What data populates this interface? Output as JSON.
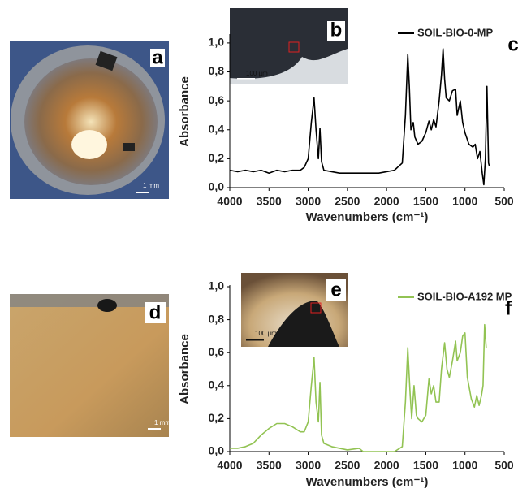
{
  "chart_data": [
    {
      "type": "line",
      "x_label": "Wavenumbers (cm⁻¹)",
      "y_label": "Absorbance",
      "xlim": [
        4000,
        500
      ],
      "xticks": [
        4000,
        3500,
        3000,
        2500,
        2000,
        1500,
        1000,
        500
      ],
      "ylim": [
        0,
        1.05
      ],
      "yticks": [
        {
          "value": 0,
          "label": "0,0"
        },
        {
          "value": 0.2,
          "label": "0,2"
        },
        {
          "value": 0.4,
          "label": "0,4"
        },
        {
          "value": 0.6,
          "label": "0,6"
        },
        {
          "value": 0.8,
          "label": "0,8"
        },
        {
          "value": 1,
          "label": "1,0"
        }
      ],
      "legend": "upper right",
      "panel_labels": [
        "a",
        "b",
        "c"
      ],
      "scale_labels": [
        "1 mm",
        "100 µm"
      ],
      "x": [
        4000,
        3900,
        3800,
        3700,
        3600,
        3500,
        3400,
        3300,
        3200,
        3100,
        3050,
        3000,
        2960,
        2925,
        2900,
        2870,
        2850,
        2830,
        2800,
        2700,
        2600,
        2500,
        2400,
        2300,
        2200,
        2100,
        2000,
        1900,
        1800,
        1760,
        1730,
        1710,
        1690,
        1660,
        1640,
        1600,
        1550,
        1500,
        1460,
        1430,
        1400,
        1370,
        1330,
        1300,
        1280,
        1260,
        1240,
        1200,
        1160,
        1120,
        1100,
        1060,
        1030,
        1000,
        950,
        900,
        870,
        840,
        810,
        780,
        760,
        740,
        720,
        700,
        690
      ],
      "series": [
        {
          "name": "SOIL-BIO-0-MP",
          "color": "#000000",
          "values": [
            0.12,
            0.11,
            0.12,
            0.11,
            0.12,
            0.1,
            0.12,
            0.11,
            0.12,
            0.12,
            0.14,
            0.2,
            0.45,
            0.62,
            0.4,
            0.2,
            0.41,
            0.18,
            0.12,
            0.11,
            0.1,
            0.1,
            0.1,
            0.1,
            0.1,
            0.1,
            0.11,
            0.12,
            0.17,
            0.5,
            0.92,
            0.7,
            0.4,
            0.45,
            0.35,
            0.3,
            0.32,
            0.38,
            0.46,
            0.4,
            0.47,
            0.42,
            0.6,
            0.78,
            0.96,
            0.75,
            0.62,
            0.6,
            0.67,
            0.68,
            0.5,
            0.6,
            0.45,
            0.38,
            0.3,
            0.28,
            0.3,
            0.2,
            0.25,
            0.1,
            0.02,
            0.2,
            0.7,
            0.17,
            0.15
          ]
        }
      ]
    },
    {
      "type": "line",
      "x_label": "Wavenumbers (cm⁻¹)",
      "y_label": "Absorbance",
      "xlim": [
        4000,
        500
      ],
      "xticks": [
        4000,
        3500,
        3000,
        2500,
        2000,
        1500,
        1000,
        500
      ],
      "ylim": [
        0,
        1.0
      ],
      "yticks": [
        {
          "value": 0,
          "label": "0,0"
        },
        {
          "value": 0.2,
          "label": "0,2"
        },
        {
          "value": 0.4,
          "label": "0,4"
        },
        {
          "value": 0.6,
          "label": "0,6"
        },
        {
          "value": 0.8,
          "label": "0,8"
        },
        {
          "value": 1,
          "label": "1,0"
        }
      ],
      "legend": "upper right",
      "panel_labels": [
        "d",
        "e",
        "f"
      ],
      "scale_labels": [
        "1 mm",
        "100 µm"
      ],
      "x": [
        4000,
        3900,
        3800,
        3700,
        3600,
        3500,
        3400,
        3300,
        3200,
        3100,
        3050,
        3000,
        2960,
        2925,
        2900,
        2870,
        2850,
        2830,
        2800,
        2700,
        2500,
        2350,
        2300,
        2100,
        1900,
        1800,
        1760,
        1730,
        1700,
        1680,
        1650,
        1620,
        1600,
        1550,
        1500,
        1460,
        1430,
        1400,
        1370,
        1330,
        1300,
        1260,
        1230,
        1200,
        1160,
        1120,
        1100,
        1060,
        1030,
        1000,
        970,
        920,
        880,
        850,
        820,
        790,
        770,
        750,
        730
      ],
      "series": [
        {
          "name": "SOIL-BIO-A192 MP",
          "color": "#92c353",
          "values": [
            0.02,
            0.02,
            0.03,
            0.05,
            0.1,
            0.14,
            0.17,
            0.17,
            0.15,
            0.12,
            0.12,
            0.18,
            0.4,
            0.57,
            0.3,
            0.18,
            0.42,
            0.1,
            0.05,
            0.03,
            0.01,
            0.02,
            0.0,
            0.0,
            0.0,
            0.03,
            0.3,
            0.63,
            0.35,
            0.2,
            0.4,
            0.22,
            0.2,
            0.18,
            0.22,
            0.44,
            0.35,
            0.4,
            0.3,
            0.3,
            0.5,
            0.66,
            0.5,
            0.45,
            0.55,
            0.67,
            0.55,
            0.6,
            0.7,
            0.72,
            0.45,
            0.32,
            0.27,
            0.34,
            0.28,
            0.34,
            0.4,
            0.77,
            0.63
          ]
        }
      ]
    }
  ]
}
